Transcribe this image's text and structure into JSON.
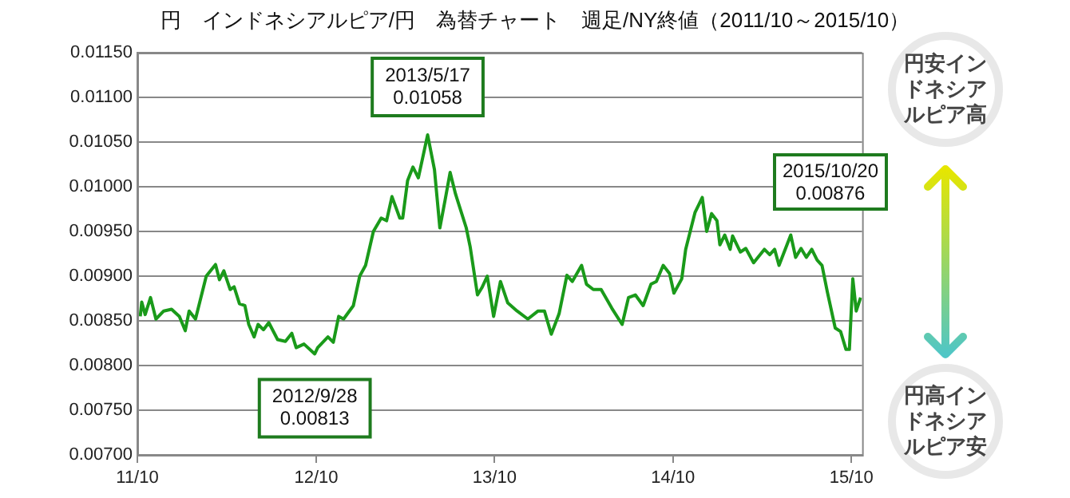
{
  "chart_data": {
    "type": "line",
    "title": "円　インドネシアルピア/円　為替チャート　週足/NY終値（2011/10～2015/10）",
    "series": [
      {
        "color": "#1a9a1a",
        "x": [
          "2011-10-07",
          "2011-10-10",
          "2011-10-17",
          "2011-10-28",
          "2011-11-08",
          "2011-11-24",
          "2011-12-10",
          "2011-12-26",
          "2012-01-07",
          "2012-01-15",
          "2012-01-28",
          "2012-02-19",
          "2012-03-09",
          "2012-03-17",
          "2012-03-26",
          "2012-04-08",
          "2012-04-16",
          "2012-04-27",
          "2012-05-08",
          "2012-05-16",
          "2012-05-27",
          "2012-06-04",
          "2012-06-15",
          "2012-06-26",
          "2012-07-14",
          "2012-07-30",
          "2012-08-12",
          "2012-08-21",
          "2012-09-06",
          "2012-09-28",
          "2012-10-04",
          "2012-10-25",
          "2012-11-05",
          "2012-11-16",
          "2012-11-26",
          "2012-12-16",
          "2012-12-29",
          "2013-01-10",
          "2013-01-26",
          "2013-02-11",
          "2013-02-22",
          "2013-03-05",
          "2013-03-21",
          "2013-03-27",
          "2013-04-06",
          "2013-04-17",
          "2013-04-28",
          "2013-05-17",
          "2013-05-31",
          "2013-06-11",
          "2013-06-21",
          "2013-07-02",
          "2013-07-13",
          "2013-08-04",
          "2013-08-12",
          "2013-08-27",
          "2013-09-05",
          "2013-09-16",
          "2013-09-29",
          "2013-10-13",
          "2013-10-28",
          "2013-11-16",
          "2013-12-08",
          "2013-12-29",
          "2014-01-11",
          "2014-01-25",
          "2014-02-10",
          "2014-02-26",
          "2014-03-09",
          "2014-03-28",
          "2014-04-07",
          "2014-04-21",
          "2014-05-07",
          "2014-05-29",
          "2014-06-19",
          "2014-07-02",
          "2014-07-16",
          "2014-08-01",
          "2014-08-17",
          "2014-08-28",
          "2014-09-11",
          "2014-09-24",
          "2014-10-03",
          "2014-10-19",
          "2014-10-27",
          "2014-11-15",
          "2014-11-30",
          "2014-12-09",
          "2014-12-19",
          "2014-12-30",
          "2015-01-05",
          "2015-01-15",
          "2015-01-26",
          "2015-01-31",
          "2015-02-16",
          "2015-02-27",
          "2015-03-15",
          "2015-04-06",
          "2015-04-17",
          "2015-04-27",
          "2015-05-06",
          "2015-05-30",
          "2015-06-09",
          "2015-06-20",
          "2015-07-01",
          "2015-07-12",
          "2015-07-23",
          "2015-08-02",
          "2015-08-13",
          "2015-08-29",
          "2015-09-09",
          "2015-09-20",
          "2015-09-27",
          "2015-10-04",
          "2015-10-11",
          "2015-10-20"
        ],
        "values": [
          0.00855,
          0.00871,
          0.00857,
          0.00876,
          0.00852,
          0.00861,
          0.00863,
          0.00855,
          0.00839,
          0.00861,
          0.00852,
          0.009,
          0.00913,
          0.00896,
          0.00906,
          0.00885,
          0.00888,
          0.00869,
          0.00867,
          0.00846,
          0.00832,
          0.00846,
          0.0084,
          0.00848,
          0.00829,
          0.00827,
          0.00836,
          0.0082,
          0.00824,
          0.00813,
          0.0082,
          0.00832,
          0.00826,
          0.00855,
          0.00852,
          0.00867,
          0.009,
          0.00912,
          0.0095,
          0.00965,
          0.00962,
          0.00989,
          0.00965,
          0.00965,
          0.01007,
          0.01022,
          0.0101,
          0.01058,
          0.01019,
          0.00954,
          0.00983,
          0.01016,
          0.00992,
          0.00954,
          0.00933,
          0.00879,
          0.00887,
          0.009,
          0.00855,
          0.00894,
          0.0087,
          0.00861,
          0.00852,
          0.00861,
          0.00861,
          0.00835,
          0.00858,
          0.00901,
          0.00894,
          0.00912,
          0.00891,
          0.00885,
          0.00885,
          0.00864,
          0.00846,
          0.00876,
          0.00879,
          0.00867,
          0.00891,
          0.00894,
          0.00912,
          0.00903,
          0.00881,
          0.00897,
          0.0093,
          0.00971,
          0.00988,
          0.0095,
          0.0097,
          0.00962,
          0.00935,
          0.00946,
          0.0093,
          0.00945,
          0.00927,
          0.00931,
          0.00915,
          0.0093,
          0.00924,
          0.0093,
          0.00912,
          0.00946,
          0.00921,
          0.00931,
          0.00921,
          0.0093,
          0.00918,
          0.00912,
          0.00882,
          0.00842,
          0.00838,
          0.00818,
          0.00818,
          0.00897,
          0.00861,
          0.00876
        ]
      }
    ],
    "xlim": [
      "2011-10-01",
      "2015-10-23"
    ],
    "xticks": [
      {
        "value": "2011-10-01",
        "label": "11/10"
      },
      {
        "value": "2012-10-01",
        "label": "12/10"
      },
      {
        "value": "2013-10-01",
        "label": "13/10"
      },
      {
        "value": "2014-10-01",
        "label": "14/10"
      },
      {
        "value": "2015-10-01",
        "label": "15/10"
      }
    ],
    "ylim": [
      0.007,
      0.0115
    ],
    "yticks": [
      {
        "value": 0.007,
        "label": "0.00700"
      },
      {
        "value": 0.0075,
        "label": "0.00750"
      },
      {
        "value": 0.008,
        "label": "0.00800"
      },
      {
        "value": 0.0085,
        "label": "0.00850"
      },
      {
        "value": 0.009,
        "label": "0.00900"
      },
      {
        "value": 0.0095,
        "label": "0.00950"
      },
      {
        "value": 0.01,
        "label": "0.01000"
      },
      {
        "value": 0.0105,
        "label": "0.01050"
      },
      {
        "value": 0.011,
        "label": "0.01100"
      },
      {
        "value": 0.0115,
        "label": "0.01150"
      }
    ],
    "grid": "y",
    "legend": false,
    "marker": "none",
    "line_style": "solid",
    "annotations": [
      {
        "text": "2013/5/17\n0.01058",
        "x": "2013-05-17",
        "y": 0.01058
      },
      {
        "text": "2012/9/28\n0.00813",
        "x": "2012-09-28",
        "y": 0.00813
      },
      "2015/10/20\n0.00876",
      "円安インドネシアルピア高",
      "円高インドネシアルピア安"
    ]
  }
}
